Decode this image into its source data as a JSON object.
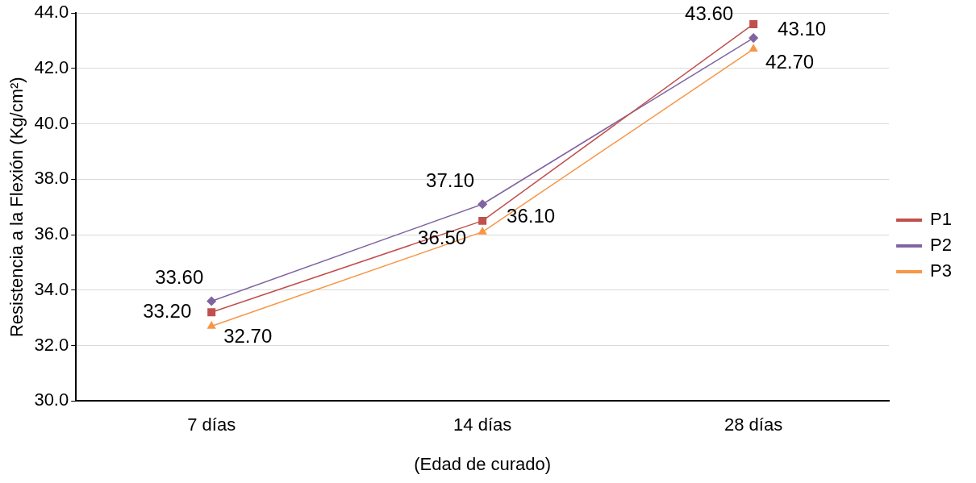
{
  "chart_data": {
    "type": "line",
    "xlabel": "(Edad de curado)",
    "ylabel": "Resistencia a la Flexión (Kg/cm²)",
    "categories": [
      "7 días",
      "14 días",
      "28 días"
    ],
    "series": [
      {
        "name": "P1",
        "color": "#c0504d",
        "marker": "square",
        "values": [
          33.2,
          36.5,
          43.6
        ],
        "value_labels": [
          "33.20",
          "36.50",
          "43.60"
        ]
      },
      {
        "name": "P2",
        "color": "#8064a2",
        "marker": "diamond",
        "values": [
          33.6,
          37.1,
          43.1
        ],
        "value_labels": [
          "33.60",
          "37.10",
          "43.10"
        ]
      },
      {
        "name": "P3",
        "color": "#f79646",
        "marker": "triangle",
        "values": [
          32.7,
          36.1,
          42.7
        ],
        "value_labels": [
          "32.70",
          "36.10",
          "42.70"
        ]
      }
    ],
    "ylim": [
      30,
      44
    ],
    "yticks": [
      {
        "value": 30,
        "label": "30.0"
      },
      {
        "value": 32,
        "label": "32.0"
      },
      {
        "value": 34,
        "label": "34.0"
      },
      {
        "value": 36,
        "label": "36.0"
      },
      {
        "value": 38,
        "label": "38.0"
      },
      {
        "value": 40,
        "label": "40.0"
      },
      {
        "value": 42,
        "label": "42.0"
      },
      {
        "value": 44,
        "label": "44.0"
      }
    ],
    "grid": "y",
    "legend": "right"
  }
}
